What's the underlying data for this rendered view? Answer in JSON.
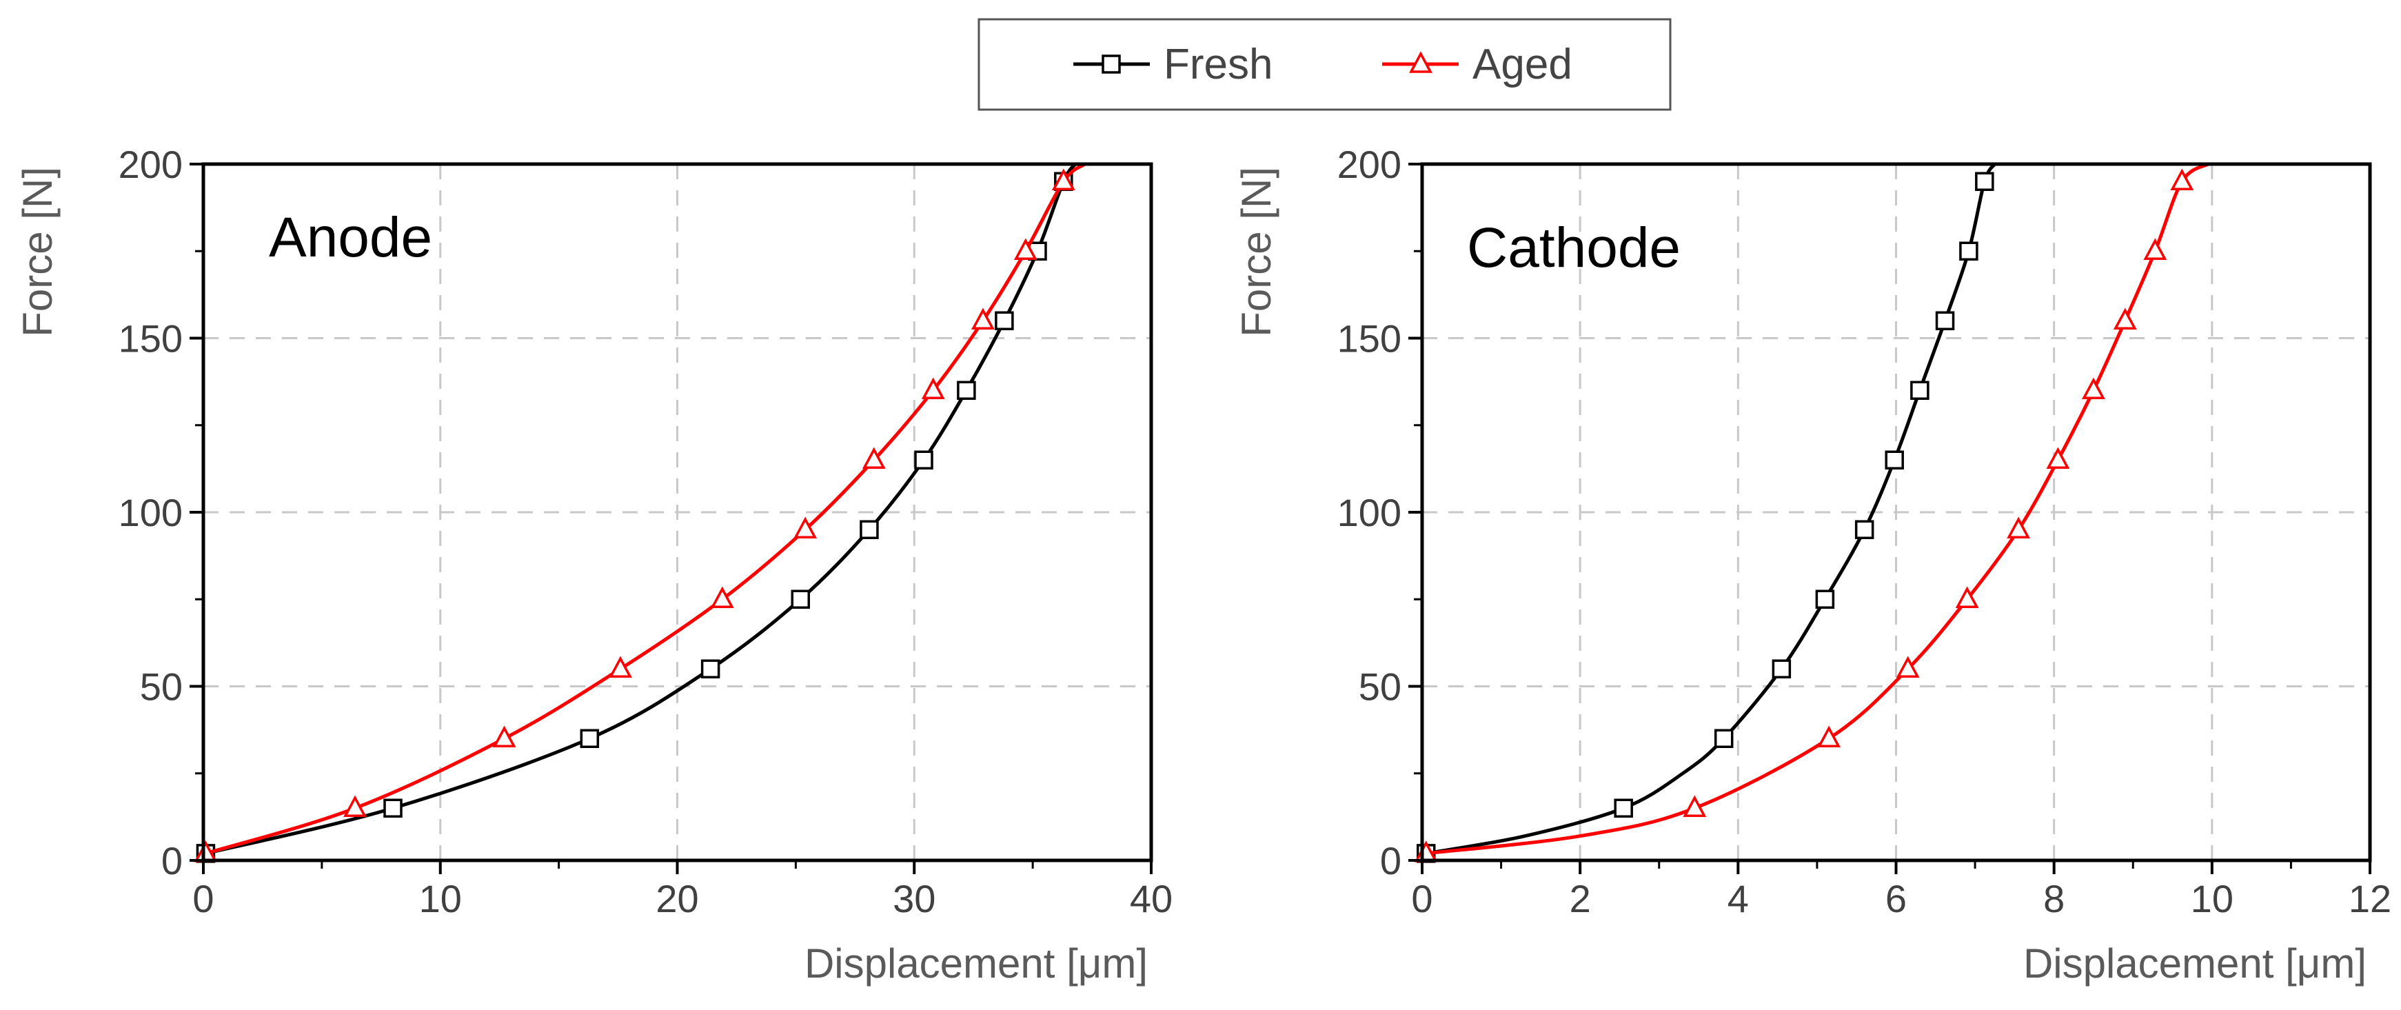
{
  "legend": {
    "entries": [
      {
        "label": "Fresh",
        "color": "#000000",
        "marker": "square"
      },
      {
        "label": "Aged",
        "color": "#ff0000",
        "marker": "triangle"
      }
    ],
    "position": "top-center"
  },
  "chart_data": [
    {
      "type": "line",
      "title": "Anode",
      "xlabel": "Displacement [μm]",
      "ylabel": "Force [N]",
      "xlim": [
        0,
        40
      ],
      "ylim": [
        0,
        200
      ],
      "xticks": [
        "0",
        "10",
        "20",
        "30",
        "40"
      ],
      "yticks": [
        "0",
        "50",
        "100",
        "150",
        "200"
      ],
      "grid": true,
      "series": [
        {
          "name": "Fresh",
          "color": "#000000",
          "marker": "square",
          "x": [
            0.1,
            8.0,
            16.3,
            21.4,
            25.2,
            28.1,
            30.4,
            32.2,
            33.8,
            35.2,
            36.3,
            36.8
          ],
          "y": [
            2,
            15,
            35,
            55,
            75,
            95,
            115,
            135,
            155,
            175,
            195,
            200
          ],
          "marker_indices": [
            0,
            1,
            2,
            3,
            4,
            5,
            6,
            7,
            8,
            9,
            10
          ]
        },
        {
          "name": "Aged",
          "color": "#ff0000",
          "marker": "triangle",
          "x": [
            0.1,
            6.4,
            12.7,
            17.6,
            21.9,
            25.4,
            28.3,
            30.8,
            32.9,
            34.7,
            36.3,
            37.2
          ],
          "y": [
            2,
            15,
            35,
            55,
            75,
            95,
            115,
            135,
            155,
            175,
            195,
            200
          ],
          "marker_indices": [
            0,
            1,
            2,
            3,
            4,
            5,
            6,
            7,
            8,
            9,
            10
          ]
        }
      ]
    },
    {
      "type": "line",
      "title": "Cathode",
      "xlabel": "Displacement [μm]",
      "ylabel": "Force [N]",
      "xlim": [
        0,
        12
      ],
      "ylim": [
        0,
        200
      ],
      "xticks": [
        "0",
        "2",
        "4",
        "6",
        "8",
        "10",
        "12"
      ],
      "yticks": [
        "0",
        "50",
        "100",
        "150",
        "200"
      ],
      "grid": true,
      "series": [
        {
          "name": "Fresh",
          "color": "#000000",
          "marker": "square",
          "x": [
            0.05,
            1.3,
            2.55,
            3.3,
            3.82,
            4.55,
            5.1,
            5.6,
            5.98,
            6.3,
            6.62,
            6.92,
            7.12,
            7.25
          ],
          "y": [
            2,
            7,
            15,
            25,
            35,
            55,
            75,
            95,
            115,
            135,
            155,
            175,
            195,
            200
          ],
          "marker_indices": [
            0,
            2,
            4,
            5,
            6,
            7,
            8,
            9,
            10,
            11,
            12
          ]
        },
        {
          "name": "Aged",
          "color": "#ff0000",
          "marker": "triangle",
          "x": [
            0.05,
            2.0,
            3.45,
            5.15,
            6.15,
            6.9,
            7.55,
            8.05,
            8.5,
            8.9,
            9.28,
            9.62,
            9.95
          ],
          "y": [
            2,
            7,
            15,
            35,
            55,
            75,
            95,
            115,
            135,
            155,
            175,
            195,
            200
          ],
          "marker_indices": [
            0,
            2,
            3,
            4,
            5,
            6,
            7,
            8,
            9,
            10,
            11
          ]
        }
      ]
    }
  ]
}
